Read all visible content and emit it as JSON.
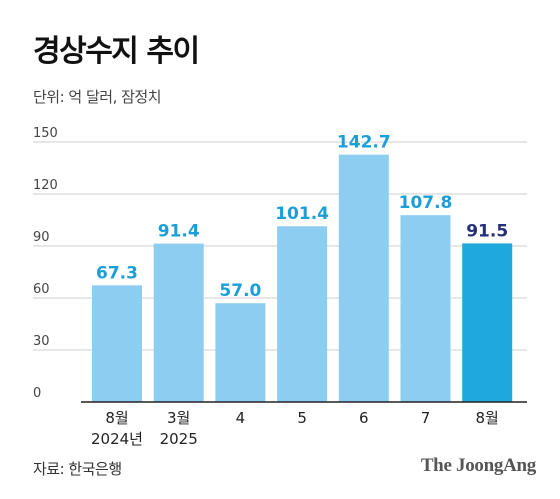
{
  "title": "경상수지 추이",
  "unit_label": "단위: 억 달러, 잠정치",
  "source_label": "자료: 한국은행",
  "logo_text": "The JoongAng",
  "colors": {
    "bar": "#8ecdf2",
    "bar_highlight": "#1fa8db",
    "value_label": "#1c9fd8",
    "value_label_highlight": "#25307a",
    "grid": "#cfcfcf",
    "axis": "#222222",
    "tick": "#444444"
  },
  "chart_data": {
    "type": "bar",
    "title": "경상수지 추이",
    "ylabel": "",
    "xlabel": "",
    "ylim": [
      0,
      150
    ],
    "y_ticks": [
      0,
      30,
      60,
      90,
      120,
      150
    ],
    "grid": true,
    "categories": [
      [
        "8월",
        "2024년"
      ],
      [
        "3월",
        "2025"
      ],
      [
        "4"
      ],
      [
        "5"
      ],
      [
        "6"
      ],
      [
        "7"
      ],
      [
        "8월"
      ]
    ],
    "values": [
      67.3,
      91.4,
      57.0,
      101.4,
      142.7,
      107.8,
      91.5
    ],
    "value_labels": [
      "67.3",
      "91.4",
      "57.0",
      "101.4",
      "142.7",
      "107.8",
      "91.5"
    ],
    "highlight_index": 6
  }
}
